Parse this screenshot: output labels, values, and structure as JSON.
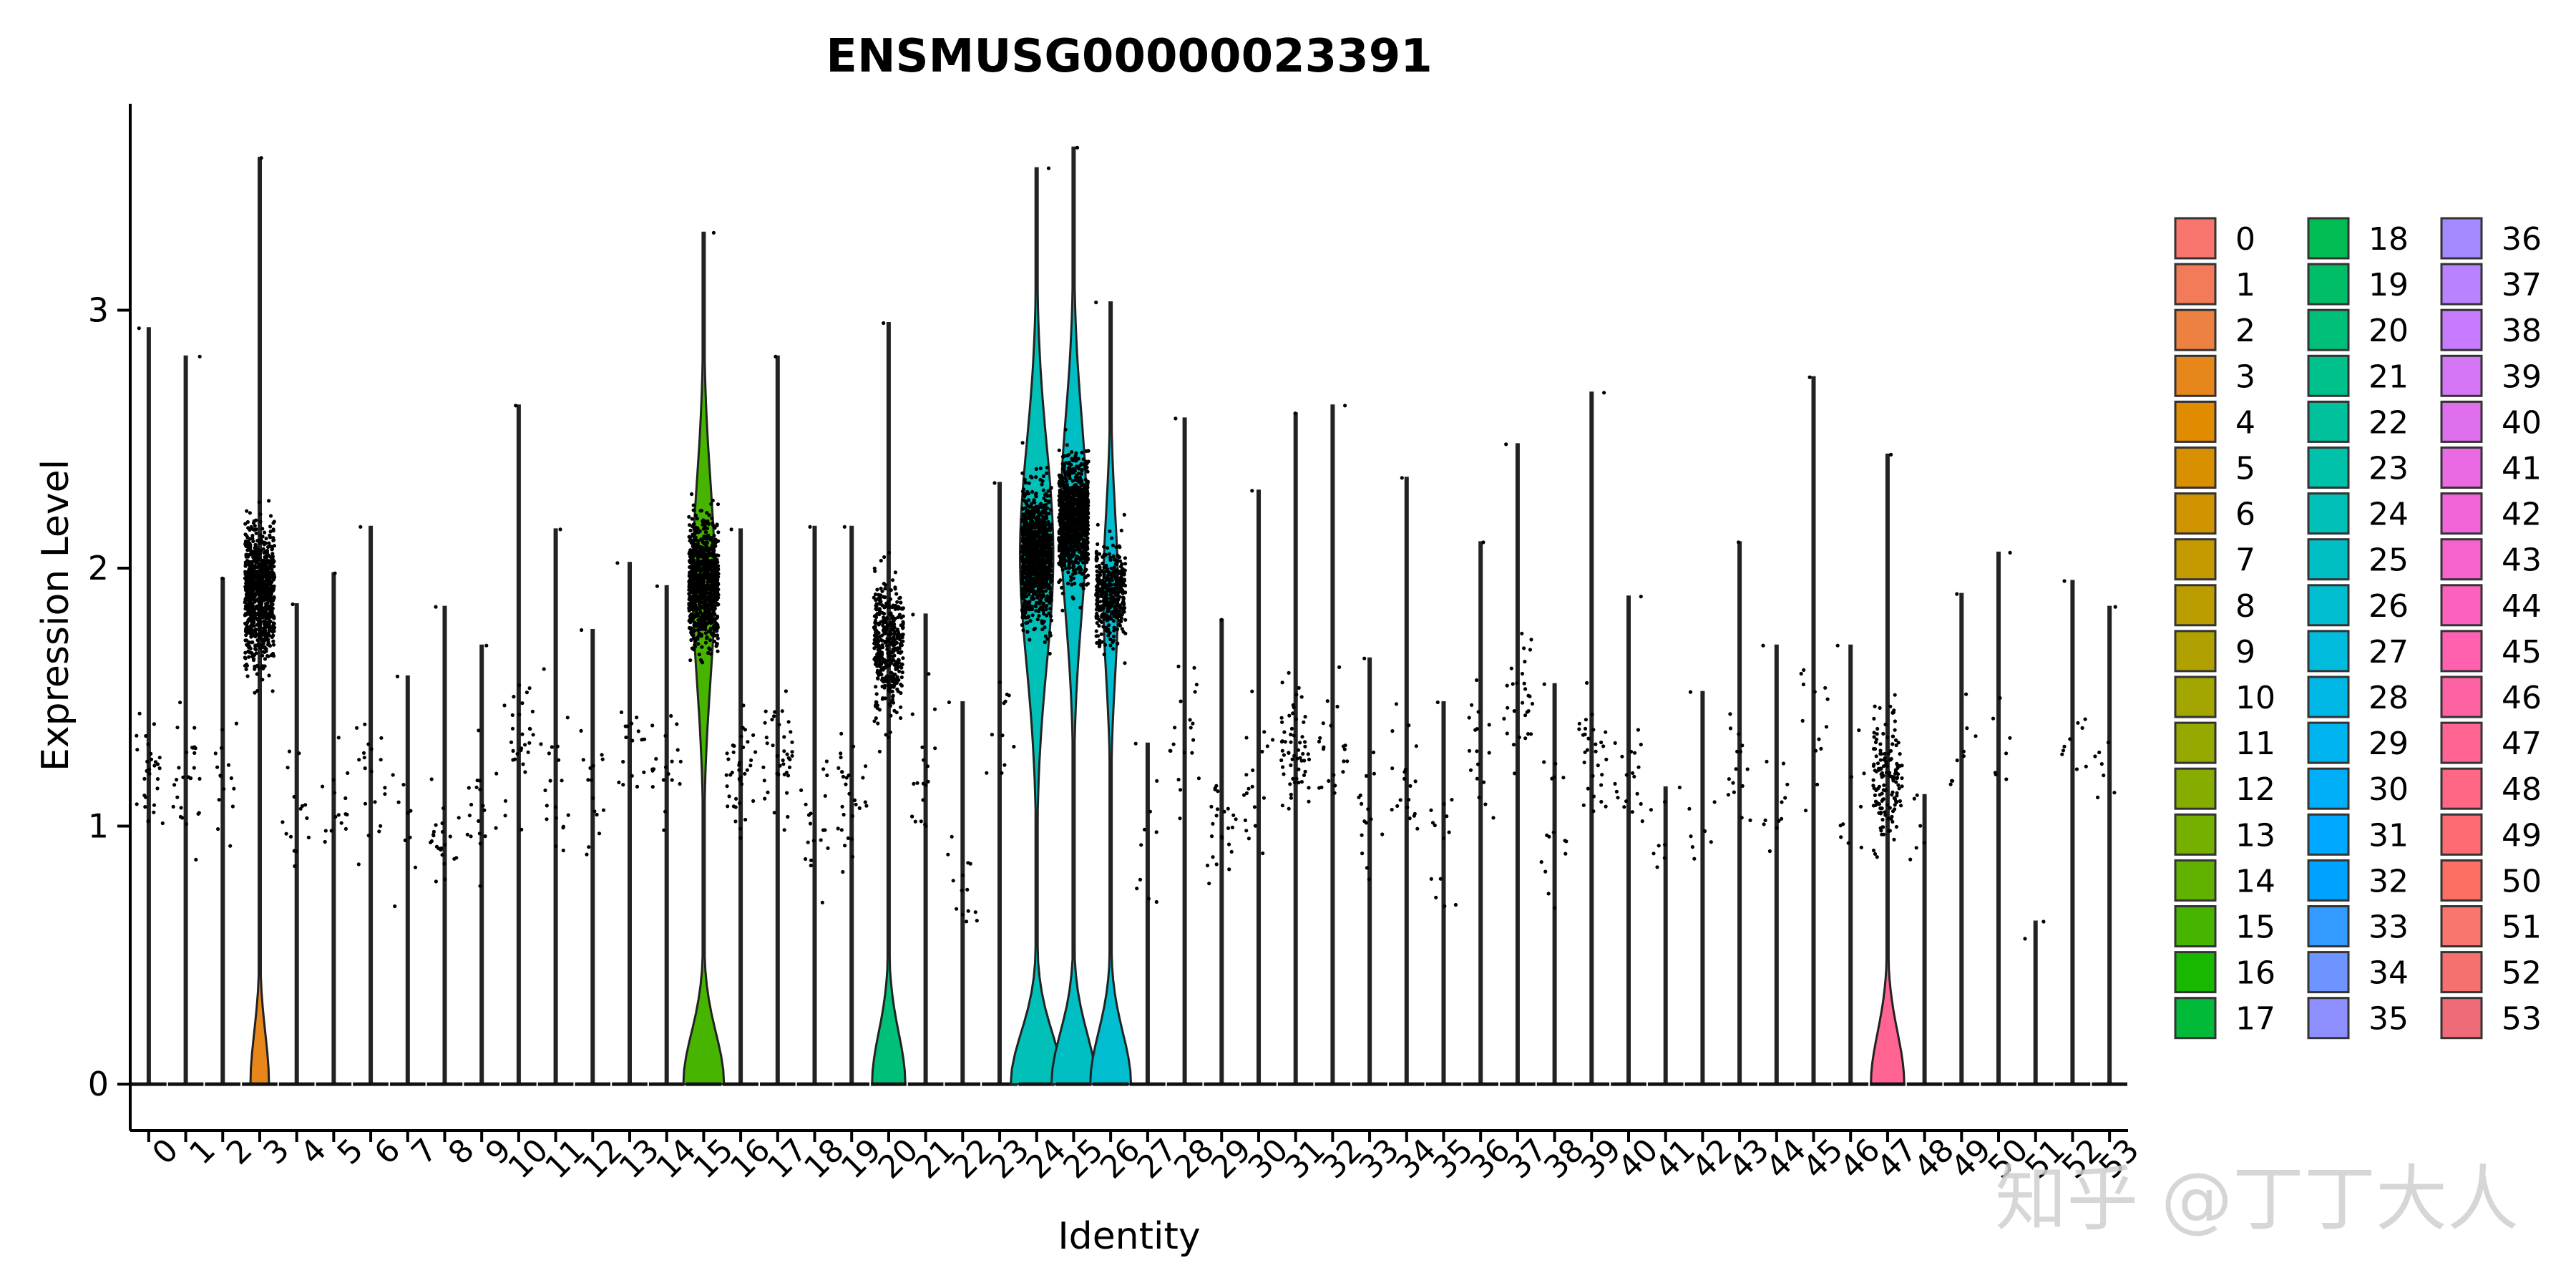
{
  "chart_data": {
    "type": "violin",
    "title": "ENSMUSG00000023391",
    "xlabel": "Identity",
    "ylabel": "Expression Level",
    "ylim": [
      -0.18,
      3.8
    ],
    "yticks": [
      0,
      1,
      2,
      3
    ],
    "categories": [
      "0",
      "1",
      "2",
      "3",
      "4",
      "5",
      "6",
      "7",
      "8",
      "9",
      "10",
      "11",
      "12",
      "13",
      "14",
      "15",
      "16",
      "17",
      "18",
      "19",
      "20",
      "21",
      "22",
      "23",
      "24",
      "25",
      "26",
      "27",
      "28",
      "29",
      "30",
      "31",
      "32",
      "33",
      "34",
      "35",
      "36",
      "37",
      "38",
      "39",
      "40",
      "41",
      "42",
      "43",
      "44",
      "45",
      "46",
      "47",
      "48",
      "49",
      "50",
      "51",
      "52",
      "53"
    ],
    "colors": [
      "#F8766D",
      "#F37B59",
      "#ED8141",
      "#E7861B",
      "#E08B00",
      "#D89000",
      "#CF9400",
      "#C59900",
      "#BB9D00",
      "#B0A100",
      "#A3A500",
      "#95A900",
      "#86AC00",
      "#75AF00",
      "#61B200",
      "#47B500",
      "#18B700",
      "#00BA38",
      "#00BC52",
      "#00BE67",
      "#00BF79",
      "#00C08B",
      "#00C19B",
      "#00C1AA",
      "#00C0B8",
      "#00BFC4",
      "#00BDD0",
      "#00BBDC",
      "#00B8E6",
      "#00B4EF",
      "#00AFF7",
      "#00A9FF",
      "#00A2FF",
      "#339BFF",
      "#6D94FF",
      "#8D8FFF",
      "#A58AFF",
      "#B983FF",
      "#C77CFF",
      "#D476F6",
      "#E06FEE",
      "#EA6AE4",
      "#F264D9",
      "#F763CC",
      "#FC61BE",
      "#FF61B0",
      "#FF62A2",
      "#FF6493",
      "#FF6784",
      "#FF6B73",
      "#FD6F63",
      "#F8766D",
      "#F4716F",
      "#F06B78"
    ],
    "max_values": [
      2.93,
      2.82,
      1.96,
      3.59,
      1.86,
      1.98,
      2.16,
      1.58,
      1.85,
      1.7,
      2.63,
      2.15,
      1.76,
      2.02,
      1.93,
      3.3,
      2.15,
      2.82,
      2.16,
      2.16,
      2.95,
      1.82,
      1.48,
      2.33,
      3.55,
      3.63,
      3.03,
      1.32,
      2.58,
      1.8,
      2.3,
      2.6,
      2.63,
      1.65,
      2.35,
      1.48,
      2.1,
      2.48,
      1.55,
      2.68,
      1.89,
      1.15,
      1.52,
      2.1,
      1.7,
      2.74,
      1.7,
      2.44,
      1.12,
      1.9,
      2.06,
      0.63,
      1.95,
      1.85
    ],
    "zero_violin_width": [
      0,
      0,
      0,
      0.25,
      0,
      0,
      0,
      0,
      0,
      0,
      0,
      0,
      0,
      0,
      0,
      0.55,
      0,
      0,
      0,
      0,
      0.45,
      0,
      0,
      0,
      0.7,
      0.6,
      0.55,
      0,
      0,
      0,
      0,
      0,
      0,
      0,
      0,
      0,
      0,
      0,
      0,
      0,
      0,
      0,
      0,
      0,
      0,
      0,
      0,
      0.45,
      0,
      0,
      0,
      0,
      0,
      0
    ],
    "upper_violin": [
      {
        "index": 15,
        "center": 1.95,
        "spread": 0.55,
        "width": 0.3
      },
      {
        "index": 24,
        "center": 2.05,
        "spread": 0.6,
        "width": 0.45
      },
      {
        "index": 25,
        "center": 2.2,
        "spread": 0.55,
        "width": 0.35
      },
      {
        "index": 26,
        "center": 1.9,
        "spread": 0.45,
        "width": 0.2
      }
    ],
    "jitter_point_counts": [
      30,
      28,
      16,
      900,
      16,
      16,
      20,
      10,
      24,
      20,
      30,
      20,
      16,
      18,
      20,
      900,
      40,
      40,
      20,
      30,
      400,
      20,
      15,
      12,
      1000,
      900,
      400,
      10,
      20,
      25,
      20,
      60,
      22,
      16,
      20,
      14,
      18,
      30,
      16,
      30,
      20,
      8,
      8,
      16,
      12,
      14,
      10,
      150,
      6,
      10,
      8,
      2,
      10,
      8
    ],
    "points_center": [
      1.2,
      1.2,
      1.2,
      1.9,
      1.1,
      1.1,
      1.2,
      1.0,
      0.9,
      1.0,
      1.3,
      1.2,
      1.1,
      1.3,
      1.2,
      2.0,
      1.2,
      1.3,
      1.0,
      1.1,
      1.7,
      1.2,
      0.7,
      1.4,
      2.0,
      1.95,
      1.8,
      0.9,
      1.3,
      1.0,
      1.2,
      1.3,
      1.3,
      1.0,
      1.2,
      0.9,
      1.3,
      1.5,
      1.0,
      1.3,
      1.2,
      1.0,
      1.0,
      1.2,
      1.1,
      1.4,
      1.1,
      1.2,
      1.0,
      1.3,
      1.3,
      0.63,
      1.3,
      1.2
    ],
    "legend": {
      "placement": "right",
      "columns": 3,
      "labels": [
        "0",
        "1",
        "2",
        "3",
        "4",
        "5",
        "6",
        "7",
        "8",
        "9",
        "10",
        "11",
        "12",
        "13",
        "14",
        "15",
        "16",
        "17",
        "18",
        "19",
        "20",
        "21",
        "22",
        "23",
        "24",
        "25",
        "26",
        "27",
        "28",
        "29",
        "30",
        "31",
        "32",
        "33",
        "34",
        "35",
        "36",
        "37",
        "38",
        "39",
        "40",
        "41",
        "42",
        "43",
        "44",
        "45",
        "46",
        "47",
        "48",
        "49",
        "50",
        "51",
        "52",
        "53"
      ]
    }
  },
  "watermark": "知乎 @丁丁大人"
}
